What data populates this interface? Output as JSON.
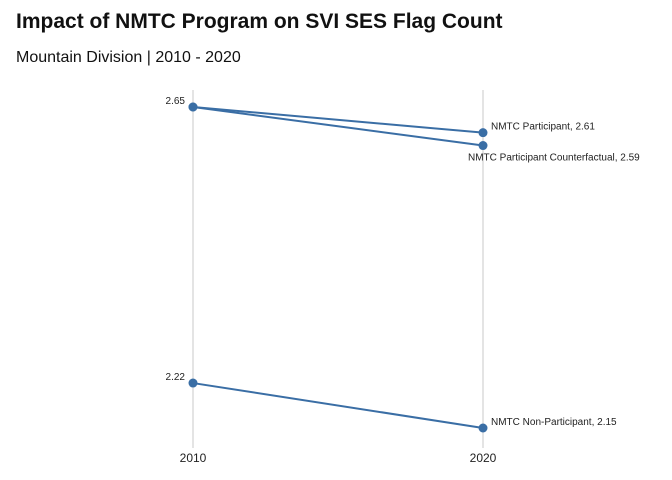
{
  "chart_data": {
    "type": "line",
    "title": "Impact of NMTC Program on SVI SES Flag Count",
    "subtitle": "Mountain Division | 2010 - 2020",
    "xlabel": "",
    "ylabel": "",
    "x": [
      "2010",
      "2020"
    ],
    "ylim": [
      2.15,
      2.65
    ],
    "grid": "vertical lines at x ticks",
    "legend": "none",
    "color": "#3a6ea5",
    "series": [
      {
        "name": "NMTC Participant",
        "values": [
          2.65,
          2.61
        ],
        "end_label": "NMTC Participant, 2.61",
        "start_label": "2.65"
      },
      {
        "name": "NMTC Participant Counterfactual",
        "values": [
          2.65,
          2.59
        ],
        "end_label": "NMTC Participant Counterfactual, 2.59",
        "start_label": ""
      },
      {
        "name": "NMTC Non-Participant",
        "values": [
          2.22,
          2.15
        ],
        "end_label": "NMTC Non-Participant, 2.15",
        "start_label": "2.22"
      }
    ]
  }
}
